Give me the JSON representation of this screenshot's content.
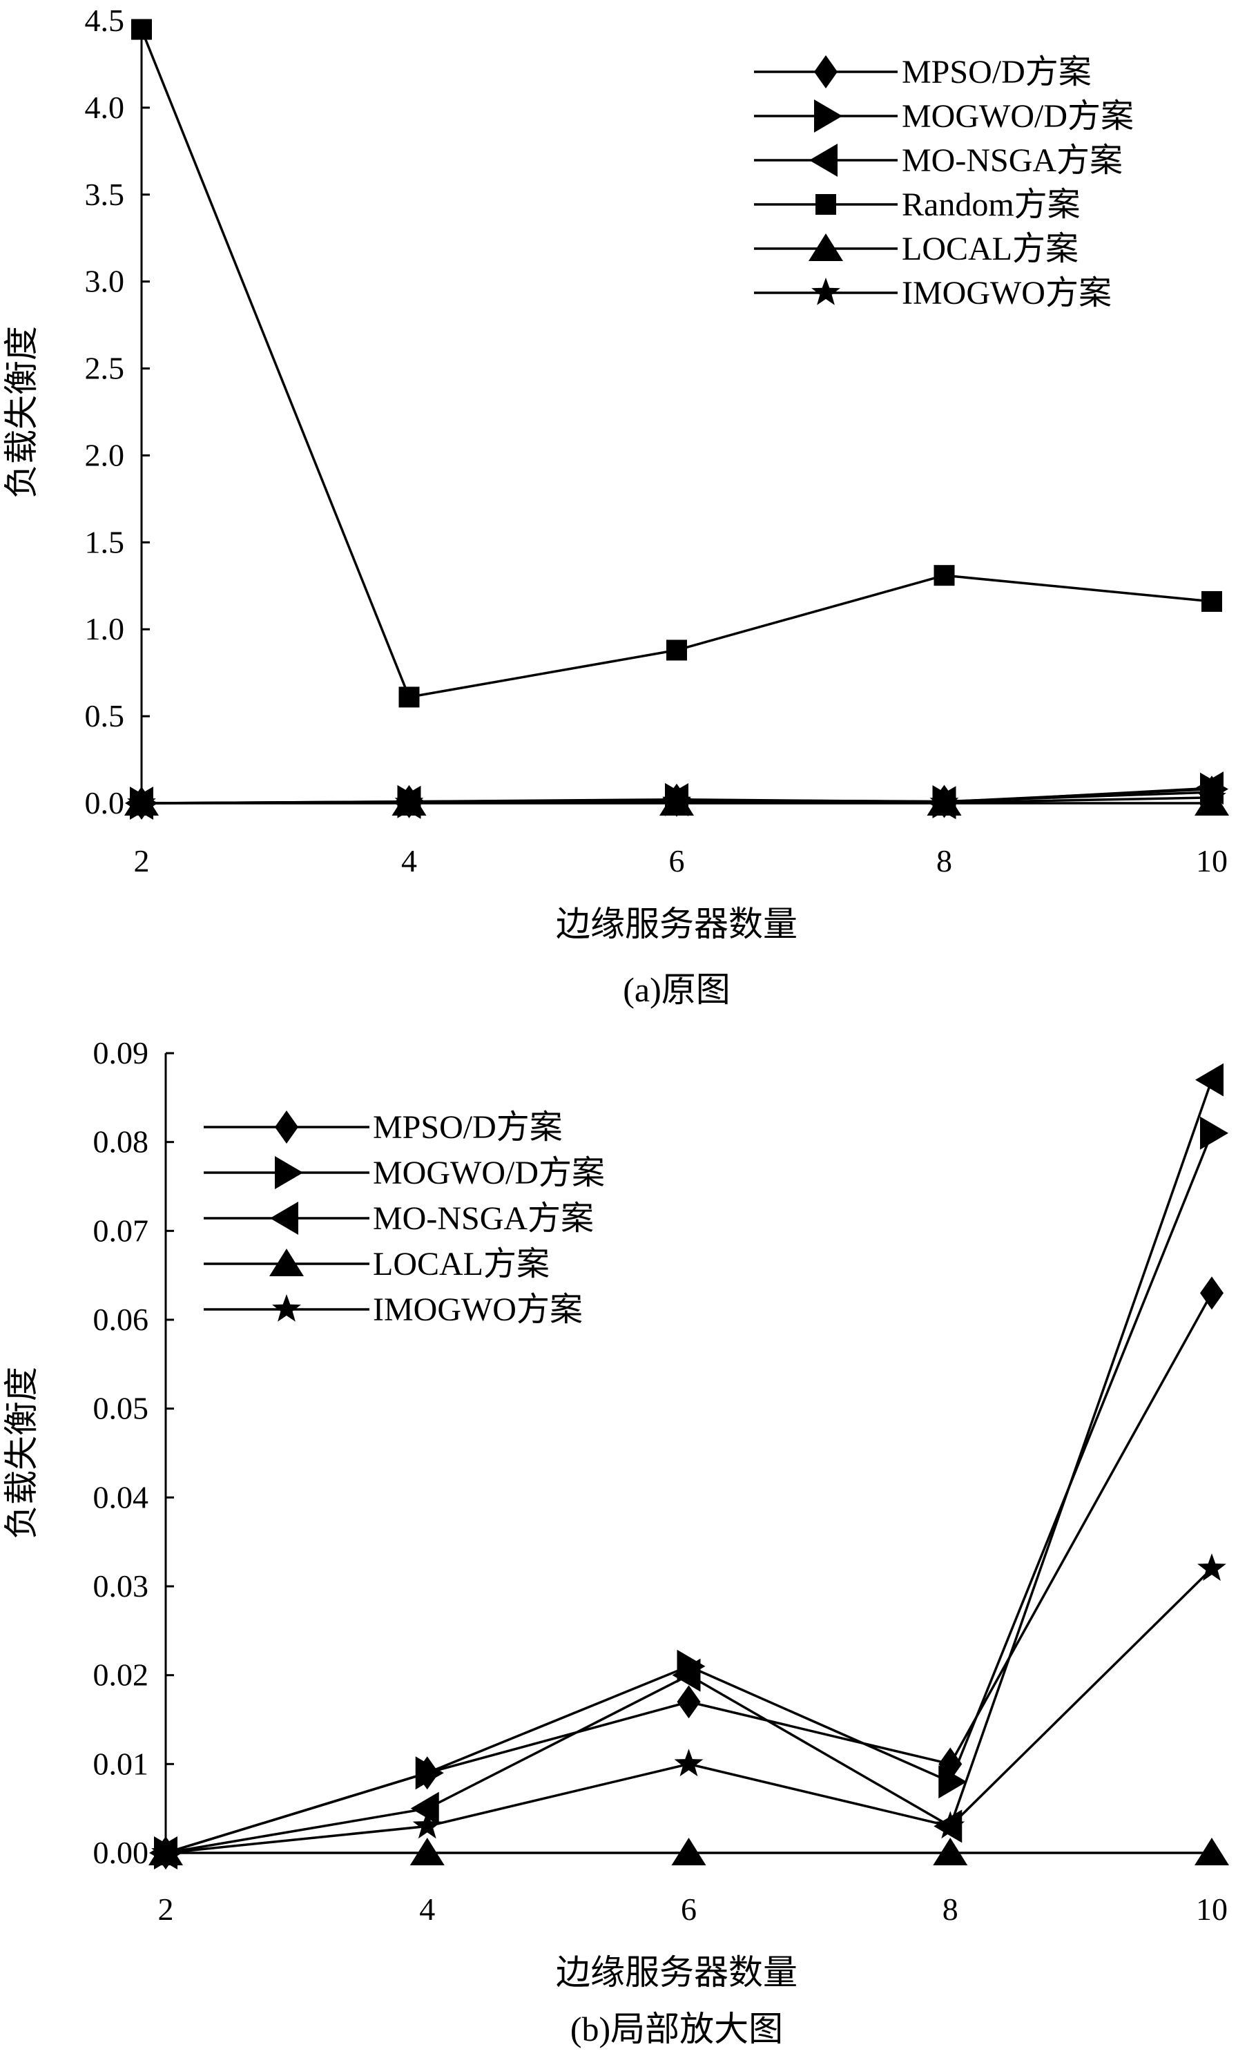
{
  "chart_data": [
    {
      "type": "line",
      "panel": "a",
      "caption": "(a)原图",
      "xlabel": "边缘服务器数量",
      "ylabel": "负载失衡度",
      "x": [
        2,
        4,
        6,
        8,
        10
      ],
      "xticks": [
        "2",
        "4",
        "6",
        "8",
        "10"
      ],
      "ylim": [
        0,
        4.5
      ],
      "yticks": [
        "0.0",
        "0.5",
        "1.0",
        "1.5",
        "2.0",
        "2.5",
        "3.0",
        "3.5",
        "4.0",
        "4.5"
      ],
      "legend_position": "top-right",
      "series": [
        {
          "name": "MPSO/D方案",
          "marker": "diamond",
          "values": [
            0,
            0.009,
            0.017,
            0.01,
            0.063
          ]
        },
        {
          "name": "MOGWO/D方案",
          "marker": "triangle-right",
          "values": [
            0,
            0.009,
            0.021,
            0.008,
            0.081
          ]
        },
        {
          "name": "MO-NSGA方案",
          "marker": "triangle-left",
          "values": [
            0,
            0.005,
            0.02,
            0.003,
            0.087
          ]
        },
        {
          "name": "Random方案",
          "marker": "square",
          "values": [
            4.45,
            0.61,
            0.88,
            1.31,
            1.16
          ]
        },
        {
          "name": "LOCAL方案",
          "marker": "triangle-up",
          "values": [
            0,
            0,
            0,
            0,
            0
          ]
        },
        {
          "name": "IMOGWO方案",
          "marker": "star",
          "values": [
            0,
            0.003,
            0.01,
            0.003,
            0.032
          ]
        }
      ]
    },
    {
      "type": "line",
      "panel": "b",
      "caption": "(b)局部放大图",
      "xlabel": "边缘服务器数量",
      "ylabel": "负载失衡度",
      "x": [
        2,
        4,
        6,
        8,
        10
      ],
      "xticks": [
        "2",
        "4",
        "6",
        "8",
        "10"
      ],
      "ylim": [
        0,
        0.09
      ],
      "yticks": [
        "0.00",
        "0.01",
        "0.02",
        "0.03",
        "0.04",
        "0.05",
        "0.06",
        "0.07",
        "0.08",
        "0.09"
      ],
      "legend_position": "top-left",
      "series": [
        {
          "name": "MPSO/D方案",
          "marker": "diamond",
          "values": [
            0,
            0.009,
            0.017,
            0.01,
            0.063
          ]
        },
        {
          "name": "MOGWO/D方案",
          "marker": "triangle-right",
          "values": [
            0,
            0.009,
            0.021,
            0.008,
            0.081
          ]
        },
        {
          "name": "MO-NSGA方案",
          "marker": "triangle-left",
          "values": [
            0,
            0.005,
            0.02,
            0.003,
            0.087
          ]
        },
        {
          "name": "LOCAL方案",
          "marker": "triangle-up",
          "values": [
            0,
            0,
            0,
            0,
            0
          ]
        },
        {
          "name": "IMOGWO方案",
          "marker": "star",
          "values": [
            0,
            0.003,
            0.01,
            0.003,
            0.032
          ]
        }
      ]
    }
  ]
}
